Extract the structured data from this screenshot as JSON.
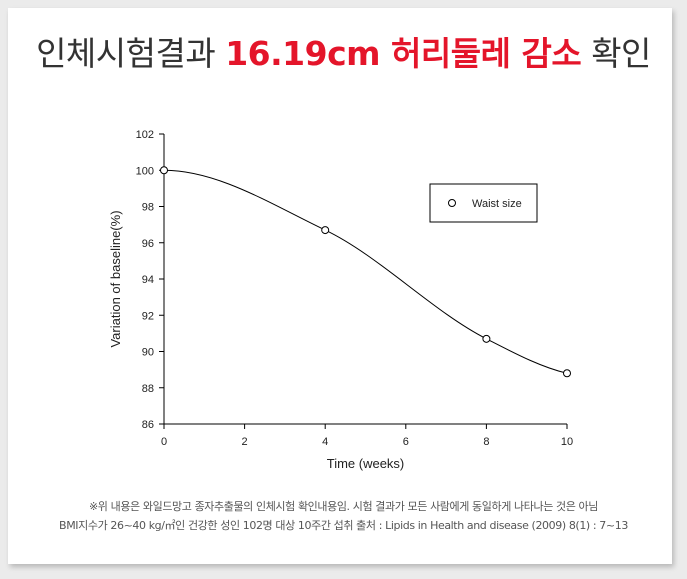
{
  "headline": {
    "prefix": "인체시험결과 ",
    "highlight_value": "16.19cm",
    "highlight_text": " 허리둘레 감소",
    "suffix": " 확인"
  },
  "chart_data": {
    "type": "line",
    "title": "",
    "xlabel": "Time (weeks)",
    "ylabel": "Variation of baseline(%)",
    "xlim": [
      0,
      10
    ],
    "ylim": [
      86,
      102
    ],
    "x_ticks": [
      0,
      2,
      4,
      6,
      8,
      10
    ],
    "y_ticks": [
      86,
      88,
      90,
      92,
      94,
      96,
      98,
      100,
      102
    ],
    "grid": false,
    "legend_position": "top-right",
    "series": [
      {
        "name": "Waist size",
        "marker": "open-circle",
        "x": [
          0,
          4,
          8,
          10
        ],
        "y": [
          100,
          96.7,
          90.7,
          88.8
        ]
      }
    ]
  },
  "footnote": {
    "line1": "※위 내용은 와일드망고 종자추출물의 인체시험 확인내용임. 시험 결과가 모든 사람에게 동일하게 나타나는 것은 아님",
    "line2": "BMI지수가 26~40 kg/㎡인 건강한 성인 102명 대상 10주간 섭취  출처 : Lipids in Health and disease (2009) 8(1) : 7~13"
  }
}
